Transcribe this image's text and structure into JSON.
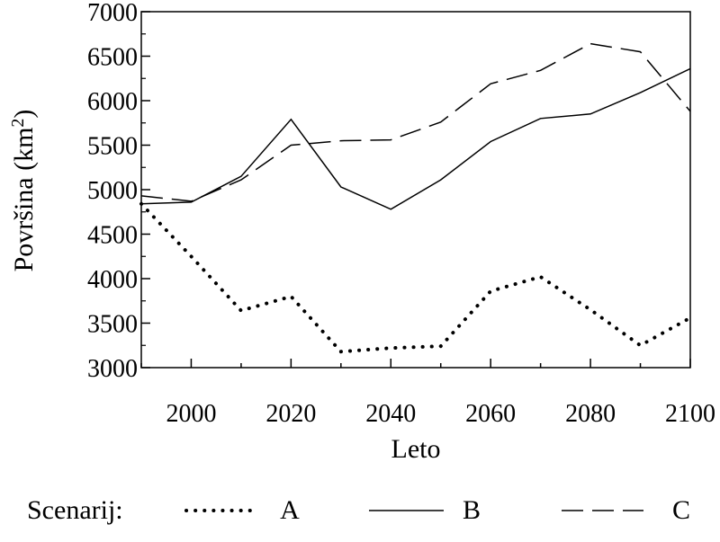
{
  "chart_data": {
    "type": "line",
    "xlabel": "Leto",
    "ylabel": "Površina (km",
    "ylabel_sup": "2",
    "ylabel_close": ")",
    "xlim": [
      1990,
      2100
    ],
    "ylim": [
      3000,
      7000
    ],
    "x_ticks": [
      2000,
      2020,
      2040,
      2060,
      2080,
      2100
    ],
    "y_ticks": [
      3000,
      3500,
      4000,
      4500,
      5000,
      5500,
      6000,
      6500,
      7000
    ],
    "grid": false,
    "legend_position": "bottom",
    "legend_title": "Scenarij:",
    "series": [
      {
        "name": "A",
        "style": "dotted",
        "x": [
          1990,
          2000,
          2010,
          2020,
          2030,
          2040,
          2050,
          2060,
          2070,
          2080,
          2090,
          2100
        ],
        "values": [
          4840,
          4250,
          3640,
          3800,
          3180,
          3220,
          3240,
          3860,
          4020,
          3650,
          3250,
          3560
        ]
      },
      {
        "name": "B",
        "style": "solid",
        "x": [
          1990,
          2000,
          2010,
          2020,
          2030,
          2040,
          2050,
          2060,
          2070,
          2080,
          2090,
          2100
        ],
        "values": [
          4840,
          4860,
          5150,
          5790,
          5030,
          4780,
          5110,
          5540,
          5800,
          5850,
          6090,
          6360
        ]
      },
      {
        "name": "C",
        "style": "dashed",
        "x": [
          1990,
          2000,
          2010,
          2020,
          2030,
          2040,
          2050,
          2060,
          2070,
          2080,
          2090,
          2100
        ],
        "values": [
          4930,
          4870,
          5110,
          5500,
          5550,
          5560,
          5760,
          6190,
          6340,
          6640,
          6550,
          5880
        ]
      }
    ]
  }
}
